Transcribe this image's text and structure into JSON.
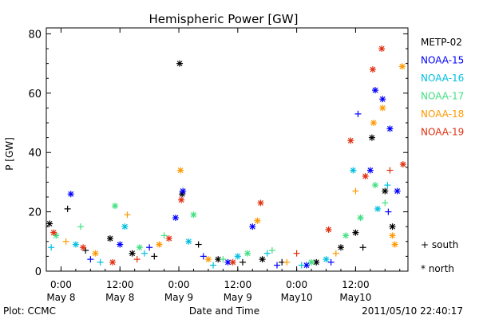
{
  "chart_data": {
    "type": "scatter",
    "title": "Hemispheric Power [GW]",
    "xlabel": "Date and Time",
    "ylabel": "P [GW]",
    "ylim": [
      0,
      82
    ],
    "xlim": [
      "2011-05-07 21:00",
      "2011-05-10 22:40"
    ],
    "yticks": [
      0,
      20,
      40,
      60,
      80
    ],
    "xticks": [
      {
        "top": "0:00",
        "bottom": "May 8",
        "t": "2011-05-08 00:00"
      },
      {
        "top": "12:00",
        "bottom": "May 8",
        "t": "2011-05-08 12:00"
      },
      {
        "top": "0:00",
        "bottom": "May 9",
        "t": "2011-05-09 00:00"
      },
      {
        "top": "12:00",
        "bottom": "May 9",
        "t": "2011-05-09 12:00"
      },
      {
        "top": "0:00",
        "bottom": "May10",
        "t": "2011-05-10 00:00"
      },
      {
        "top": "12:00",
        "bottom": "May10",
        "t": "2011-05-10 12:00"
      }
    ],
    "grid": false,
    "legend_position": "right",
    "marker_legend": [
      {
        "symbol": "+",
        "label": "south"
      },
      {
        "symbol": "*",
        "label": "north"
      }
    ],
    "footer_left": "Plot: CCMC",
    "footer_right": "2011/05/10 22:40:17",
    "series": [
      {
        "name": "METP-02",
        "color": "#000000",
        "points": [
          [
            "2011-05-07 21:40",
            16,
            "*"
          ],
          [
            "2011-05-08 01:20",
            21,
            "+"
          ],
          [
            "2011-05-08 05:00",
            7,
            "+"
          ],
          [
            "2011-05-08 10:00",
            11,
            "*"
          ],
          [
            "2011-05-08 14:30",
            6,
            "*"
          ],
          [
            "2011-05-08 19:00",
            5,
            "+"
          ],
          [
            "2011-05-09 00:10",
            70,
            "*"
          ],
          [
            "2011-05-09 00:40",
            26,
            "*"
          ],
          [
            "2011-05-09 04:00",
            9,
            "+"
          ],
          [
            "2011-05-09 08:00",
            4,
            "*"
          ],
          [
            "2011-05-09 13:00",
            3,
            "+"
          ],
          [
            "2011-05-09 17:00",
            4,
            "*"
          ],
          [
            "2011-05-09 21:00",
            3,
            "+"
          ],
          [
            "2011-05-10 04:00",
            3,
            "*"
          ],
          [
            "2011-05-10 09:00",
            8,
            "*"
          ],
          [
            "2011-05-10 12:00",
            13,
            "*"
          ],
          [
            "2011-05-10 13:30",
            8,
            "+"
          ],
          [
            "2011-05-10 15:20",
            45,
            "*"
          ],
          [
            "2011-05-10 18:00",
            27,
            "*"
          ],
          [
            "2011-05-10 19:30",
            15,
            "*"
          ]
        ]
      },
      {
        "name": "NOAA-15",
        "color": "#0000ff",
        "points": [
          [
            "2011-05-08 02:00",
            26,
            "*"
          ],
          [
            "2011-05-08 06:00",
            4,
            "+"
          ],
          [
            "2011-05-08 12:00",
            9,
            "*"
          ],
          [
            "2011-05-08 18:00",
            8,
            "+"
          ],
          [
            "2011-05-08 23:20",
            18,
            "*"
          ],
          [
            "2011-05-09 00:50",
            27,
            "*"
          ],
          [
            "2011-05-09 05:00",
            5,
            "+"
          ],
          [
            "2011-05-09 10:00",
            3,
            "*"
          ],
          [
            "2011-05-09 15:00",
            15,
            "*"
          ],
          [
            "2011-05-09 20:00",
            2,
            "+"
          ],
          [
            "2011-05-10 02:00",
            2,
            "*"
          ],
          [
            "2011-05-10 07:00",
            3,
            "+"
          ],
          [
            "2011-05-10 12:30",
            53,
            "+"
          ],
          [
            "2011-05-10 15:00",
            34,
            "*"
          ],
          [
            "2011-05-10 16:00",
            61,
            "*"
          ],
          [
            "2011-05-10 17:30",
            58,
            "*"
          ],
          [
            "2011-05-10 19:00",
            48,
            "*"
          ],
          [
            "2011-05-10 20:30",
            27,
            "*"
          ],
          [
            "2011-05-10 18:40",
            20,
            "+"
          ]
        ]
      },
      {
        "name": "NOAA-16",
        "color": "#00c0e0",
        "points": [
          [
            "2011-05-07 22:00",
            8,
            "+"
          ],
          [
            "2011-05-08 03:00",
            9,
            "*"
          ],
          [
            "2011-05-08 08:00",
            3,
            "+"
          ],
          [
            "2011-05-08 13:00",
            15,
            "*"
          ],
          [
            "2011-05-08 17:00",
            6,
            "+"
          ],
          [
            "2011-05-09 02:00",
            10,
            "*"
          ],
          [
            "2011-05-09 07:00",
            2,
            "+"
          ],
          [
            "2011-05-09 12:00",
            5,
            "*"
          ],
          [
            "2011-05-09 18:00",
            6,
            "+"
          ],
          [
            "2011-05-10 01:00",
            2,
            "+"
          ],
          [
            "2011-05-10 06:00",
            4,
            "*"
          ],
          [
            "2011-05-10 11:30",
            34,
            "*"
          ],
          [
            "2011-05-10 13:00",
            18,
            "+"
          ],
          [
            "2011-05-10 16:30",
            21,
            "*"
          ],
          [
            "2011-05-10 18:30",
            29,
            "+"
          ]
        ]
      },
      {
        "name": "NOAA-17",
        "color": "#40e080",
        "points": [
          [
            "2011-05-07 23:00",
            12,
            "*"
          ],
          [
            "2011-05-08 04:00",
            15,
            "+"
          ],
          [
            "2011-05-08 11:00",
            22,
            "*"
          ],
          [
            "2011-05-08 16:00",
            8,
            "*"
          ],
          [
            "2011-05-08 21:00",
            12,
            "+"
          ],
          [
            "2011-05-09 03:00",
            19,
            "*"
          ],
          [
            "2011-05-09 09:00",
            4,
            "+"
          ],
          [
            "2011-05-09 14:00",
            6,
            "*"
          ],
          [
            "2011-05-09 19:00",
            7,
            "+"
          ],
          [
            "2011-05-10 03:00",
            3,
            "*"
          ],
          [
            "2011-05-10 10:00",
            12,
            "*"
          ],
          [
            "2011-05-10 13:00",
            18,
            "*"
          ],
          [
            "2011-05-10 16:00",
            29,
            "*"
          ],
          [
            "2011-05-10 18:00",
            23,
            "+"
          ]
        ]
      },
      {
        "name": "NOAA-18",
        "color": "#ff9900",
        "points": [
          [
            "2011-05-08 01:00",
            10,
            "+"
          ],
          [
            "2011-05-08 07:00",
            6,
            "*"
          ],
          [
            "2011-05-08 13:30",
            19,
            "+"
          ],
          [
            "2011-05-08 20:00",
            9,
            "*"
          ],
          [
            "2011-05-09 00:20",
            34,
            "*"
          ],
          [
            "2011-05-09 06:00",
            4,
            "*"
          ],
          [
            "2011-05-09 16:00",
            17,
            "*"
          ],
          [
            "2011-05-09 22:00",
            3,
            "+"
          ],
          [
            "2011-05-10 08:00",
            6,
            "+"
          ],
          [
            "2011-05-10 12:00",
            27,
            "+"
          ],
          [
            "2011-05-10 15:40",
            50,
            "*"
          ],
          [
            "2011-05-10 17:30",
            55,
            "*"
          ],
          [
            "2011-05-10 19:30",
            12,
            "*"
          ],
          [
            "2011-05-10 20:00",
            9,
            "*"
          ],
          [
            "2011-05-10 21:30",
            69,
            "*"
          ]
        ]
      },
      {
        "name": "NOAA-19",
        "color": "#e03010",
        "points": [
          [
            "2011-05-07 22:30",
            13,
            "*"
          ],
          [
            "2011-05-08 04:30",
            8,
            "*"
          ],
          [
            "2011-05-08 10:30",
            3,
            "*"
          ],
          [
            "2011-05-08 15:30",
            4,
            "+"
          ],
          [
            "2011-05-08 22:00",
            11,
            "*"
          ],
          [
            "2011-05-09 00:30",
            24,
            "*"
          ],
          [
            "2011-05-09 11:00",
            3,
            "*"
          ],
          [
            "2011-05-09 16:40",
            23,
            "*"
          ],
          [
            "2011-05-10 00:00",
            6,
            "+"
          ],
          [
            "2011-05-10 06:30",
            14,
            "*"
          ],
          [
            "2011-05-10 11:00",
            44,
            "*"
          ],
          [
            "2011-05-10 14:00",
            32,
            "*"
          ],
          [
            "2011-05-10 15:30",
            68,
            "*"
          ],
          [
            "2011-05-10 17:20",
            75,
            "*"
          ],
          [
            "2011-05-10 21:40",
            36,
            "*"
          ],
          [
            "2011-05-10 19:00",
            34,
            "+"
          ]
        ]
      }
    ]
  }
}
